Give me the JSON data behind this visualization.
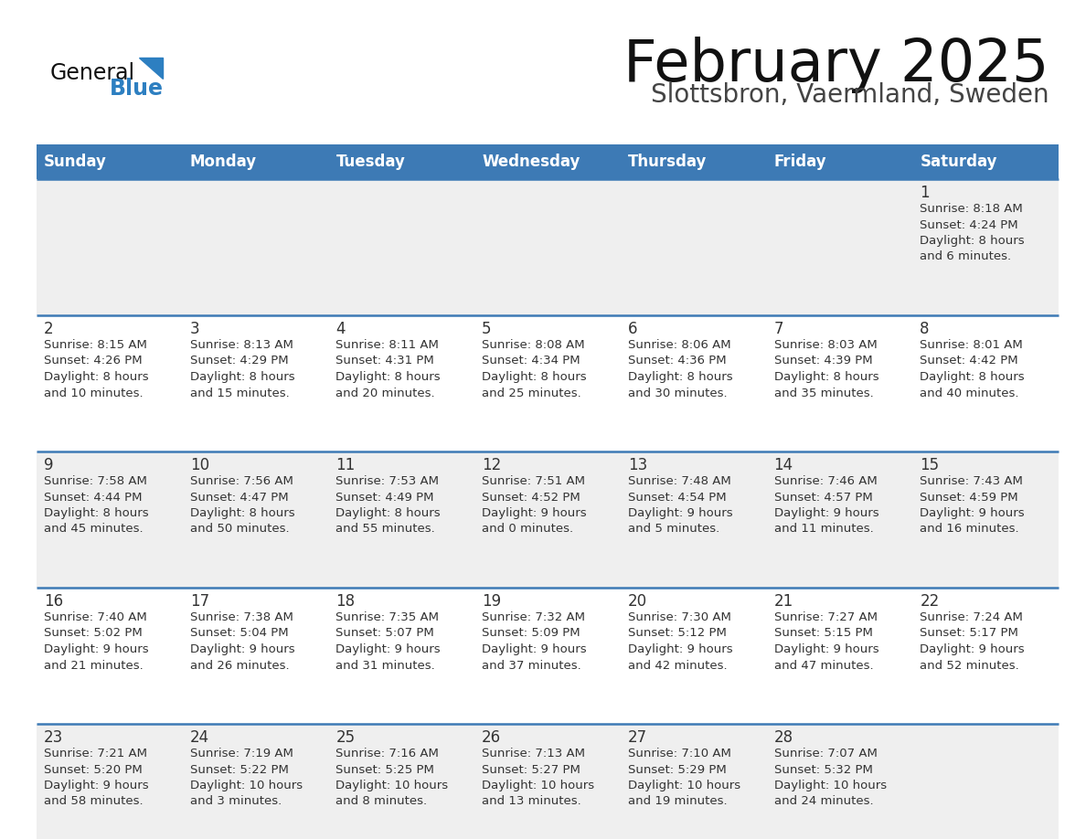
{
  "title": "February 2025",
  "subtitle": "Slottsbron, Vaermland, Sweden",
  "header_bg_color": "#3d7ab5",
  "header_text_color": "#ffffff",
  "day_names": [
    "Sunday",
    "Monday",
    "Tuesday",
    "Wednesday",
    "Thursday",
    "Friday",
    "Saturday"
  ],
  "row_bg_colors": [
    "#efefef",
    "#ffffff",
    "#efefef",
    "#ffffff",
    "#efefef"
  ],
  "cell_text_color": "#333333",
  "day_num_color": "#333333",
  "border_color": "#3d7ab5",
  "logo_text1": "General",
  "logo_text2": "Blue",
  "logo_color": "#2277cc",
  "calendar": [
    [
      null,
      null,
      null,
      null,
      null,
      null,
      {
        "day": 1,
        "sunrise": "8:18 AM",
        "sunset": "4:24 PM",
        "daylight": "8 hours",
        "daylight2": "and 6 minutes."
      }
    ],
    [
      {
        "day": 2,
        "sunrise": "8:15 AM",
        "sunset": "4:26 PM",
        "daylight": "8 hours",
        "daylight2": "and 10 minutes."
      },
      {
        "day": 3,
        "sunrise": "8:13 AM",
        "sunset": "4:29 PM",
        "daylight": "8 hours",
        "daylight2": "and 15 minutes."
      },
      {
        "day": 4,
        "sunrise": "8:11 AM",
        "sunset": "4:31 PM",
        "daylight": "8 hours",
        "daylight2": "and 20 minutes."
      },
      {
        "day": 5,
        "sunrise": "8:08 AM",
        "sunset": "4:34 PM",
        "daylight": "8 hours",
        "daylight2": "and 25 minutes."
      },
      {
        "day": 6,
        "sunrise": "8:06 AM",
        "sunset": "4:36 PM",
        "daylight": "8 hours",
        "daylight2": "and 30 minutes."
      },
      {
        "day": 7,
        "sunrise": "8:03 AM",
        "sunset": "4:39 PM",
        "daylight": "8 hours",
        "daylight2": "and 35 minutes."
      },
      {
        "day": 8,
        "sunrise": "8:01 AM",
        "sunset": "4:42 PM",
        "daylight": "8 hours",
        "daylight2": "and 40 minutes."
      }
    ],
    [
      {
        "day": 9,
        "sunrise": "7:58 AM",
        "sunset": "4:44 PM",
        "daylight": "8 hours",
        "daylight2": "and 45 minutes."
      },
      {
        "day": 10,
        "sunrise": "7:56 AM",
        "sunset": "4:47 PM",
        "daylight": "8 hours",
        "daylight2": "and 50 minutes."
      },
      {
        "day": 11,
        "sunrise": "7:53 AM",
        "sunset": "4:49 PM",
        "daylight": "8 hours",
        "daylight2": "and 55 minutes."
      },
      {
        "day": 12,
        "sunrise": "7:51 AM",
        "sunset": "4:52 PM",
        "daylight": "9 hours",
        "daylight2": "and 0 minutes."
      },
      {
        "day": 13,
        "sunrise": "7:48 AM",
        "sunset": "4:54 PM",
        "daylight": "9 hours",
        "daylight2": "and 5 minutes."
      },
      {
        "day": 14,
        "sunrise": "7:46 AM",
        "sunset": "4:57 PM",
        "daylight": "9 hours",
        "daylight2": "and 11 minutes."
      },
      {
        "day": 15,
        "sunrise": "7:43 AM",
        "sunset": "4:59 PM",
        "daylight": "9 hours",
        "daylight2": "and 16 minutes."
      }
    ],
    [
      {
        "day": 16,
        "sunrise": "7:40 AM",
        "sunset": "5:02 PM",
        "daylight": "9 hours",
        "daylight2": "and 21 minutes."
      },
      {
        "day": 17,
        "sunrise": "7:38 AM",
        "sunset": "5:04 PM",
        "daylight": "9 hours",
        "daylight2": "and 26 minutes."
      },
      {
        "day": 18,
        "sunrise": "7:35 AM",
        "sunset": "5:07 PM",
        "daylight": "9 hours",
        "daylight2": "and 31 minutes."
      },
      {
        "day": 19,
        "sunrise": "7:32 AM",
        "sunset": "5:09 PM",
        "daylight": "9 hours",
        "daylight2": "and 37 minutes."
      },
      {
        "day": 20,
        "sunrise": "7:30 AM",
        "sunset": "5:12 PM",
        "daylight": "9 hours",
        "daylight2": "and 42 minutes."
      },
      {
        "day": 21,
        "sunrise": "7:27 AM",
        "sunset": "5:15 PM",
        "daylight": "9 hours",
        "daylight2": "and 47 minutes."
      },
      {
        "day": 22,
        "sunrise": "7:24 AM",
        "sunset": "5:17 PM",
        "daylight": "9 hours",
        "daylight2": "and 52 minutes."
      }
    ],
    [
      {
        "day": 23,
        "sunrise": "7:21 AM",
        "sunset": "5:20 PM",
        "daylight": "9 hours",
        "daylight2": "and 58 minutes."
      },
      {
        "day": 24,
        "sunrise": "7:19 AM",
        "sunset": "5:22 PM",
        "daylight": "10 hours",
        "daylight2": "and 3 minutes."
      },
      {
        "day": 25,
        "sunrise": "7:16 AM",
        "sunset": "5:25 PM",
        "daylight": "10 hours",
        "daylight2": "and 8 minutes."
      },
      {
        "day": 26,
        "sunrise": "7:13 AM",
        "sunset": "5:27 PM",
        "daylight": "10 hours",
        "daylight2": "and 13 minutes."
      },
      {
        "day": 27,
        "sunrise": "7:10 AM",
        "sunset": "5:29 PM",
        "daylight": "10 hours",
        "daylight2": "and 19 minutes."
      },
      {
        "day": 28,
        "sunrise": "7:07 AM",
        "sunset": "5:32 PM",
        "daylight": "10 hours",
        "daylight2": "and 24 minutes."
      },
      null
    ]
  ]
}
